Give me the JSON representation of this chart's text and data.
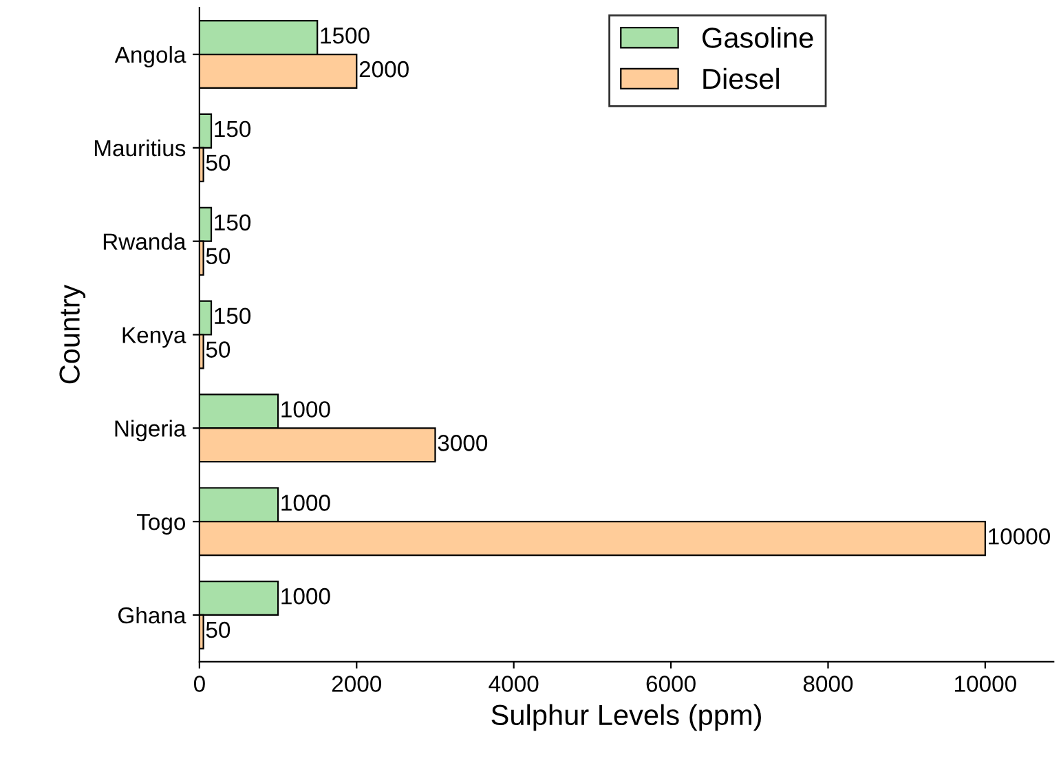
{
  "chart_data": {
    "type": "bar",
    "orientation": "horizontal",
    "xlabel": "Sulphur Levels (ppm)",
    "ylabel": "Country",
    "categories": [
      "Angola",
      "Mauritius",
      "Rwanda",
      "Kenya",
      "Nigeria",
      "Togo",
      "Ghana"
    ],
    "series": [
      {
        "name": "Gasoline",
        "color": "#a8e0a8",
        "values": [
          1500,
          150,
          150,
          150,
          1000,
          1000,
          1000
        ]
      },
      {
        "name": "Diesel",
        "color": "#ffcc99",
        "values": [
          2000,
          50,
          50,
          50,
          3000,
          10000,
          50
        ]
      }
    ],
    "xlim": [
      0,
      10870
    ],
    "xticks": [
      0,
      2000,
      4000,
      6000,
      8000,
      10000
    ],
    "data_labels": true,
    "legend": "top right",
    "grid": false
  }
}
